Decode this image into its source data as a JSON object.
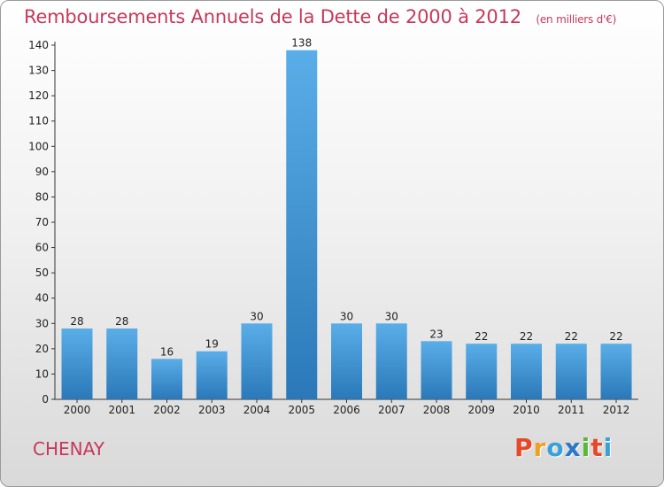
{
  "header": {
    "title": "Remboursements Annuels de la Dette de 2000 à 2012",
    "unit": "(en milliers d'€)"
  },
  "footer": {
    "town": "CHENAY",
    "logo": "Proxiti"
  },
  "colors": {
    "title": "#c8385a",
    "bar_top": "#5aaee8",
    "bar_bottom": "#2a78b8",
    "logo": [
      "#e8482a",
      "#f0a020",
      "#3aa0d8",
      "#2a78c8",
      "#5ab838",
      "#e8482a",
      "#3aa0d8"
    ]
  },
  "chart_data": {
    "type": "bar",
    "title": "Remboursements Annuels de la Dette de 2000 à 2012",
    "subtitle": "(en milliers d'€)",
    "xlabel": "",
    "ylabel": "",
    "categories": [
      "2000",
      "2001",
      "2002",
      "2003",
      "2004",
      "2005",
      "2006",
      "2007",
      "2008",
      "2009",
      "2010",
      "2011",
      "2012"
    ],
    "values": [
      28,
      28,
      16,
      19,
      30,
      138,
      30,
      30,
      23,
      22,
      22,
      22,
      22
    ],
    "ylim": [
      0,
      140
    ],
    "yticks": [
      0,
      10,
      20,
      30,
      40,
      50,
      60,
      70,
      80,
      90,
      100,
      110,
      120,
      130,
      140
    ],
    "grid": false,
    "legend": "none"
  }
}
